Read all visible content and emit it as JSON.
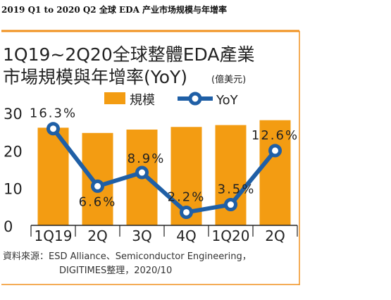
{
  "caption": "2019 Q1 to 2020 Q2 全球 EDA 产业市场规模与年增率",
  "chart_data": {
    "type": "bar",
    "title_line1": "1Q19~2Q20全球整體EDA產業",
    "title_line2": "市場規模與年增率(YoY)",
    "unit": "(億美元)",
    "categories": [
      "1Q19",
      "2Q",
      "3Q",
      "4Q",
      "1Q20",
      "2Q"
    ],
    "series": [
      {
        "name": "規模",
        "kind": "bar",
        "values": [
          26,
          24.6,
          25.5,
          26.2,
          26.7,
          28
        ]
      },
      {
        "name": "YoY",
        "kind": "line",
        "values": [
          16.3,
          6.6,
          8.9,
          2.2,
          3.5,
          12.6
        ]
      }
    ],
    "yoy_labels": [
      "16.3%",
      "6.6%",
      "8.9%",
      "2.2%",
      "3.5%",
      "12.6%"
    ],
    "y_ticks": [
      "30",
      "20",
      "10",
      "0"
    ],
    "ylim": [
      0,
      30
    ],
    "yoy_ylim": [
      0,
      19
    ],
    "source_line1": "資料來源：ESD Alliance、Semiconductor Engineering，",
    "source_line2": "DIGITIMES整理，2020/10",
    "colors": {
      "bar": "#f39c12",
      "line": "#1f5fa6",
      "accent": "#f0901e",
      "text": "#222222"
    }
  }
}
